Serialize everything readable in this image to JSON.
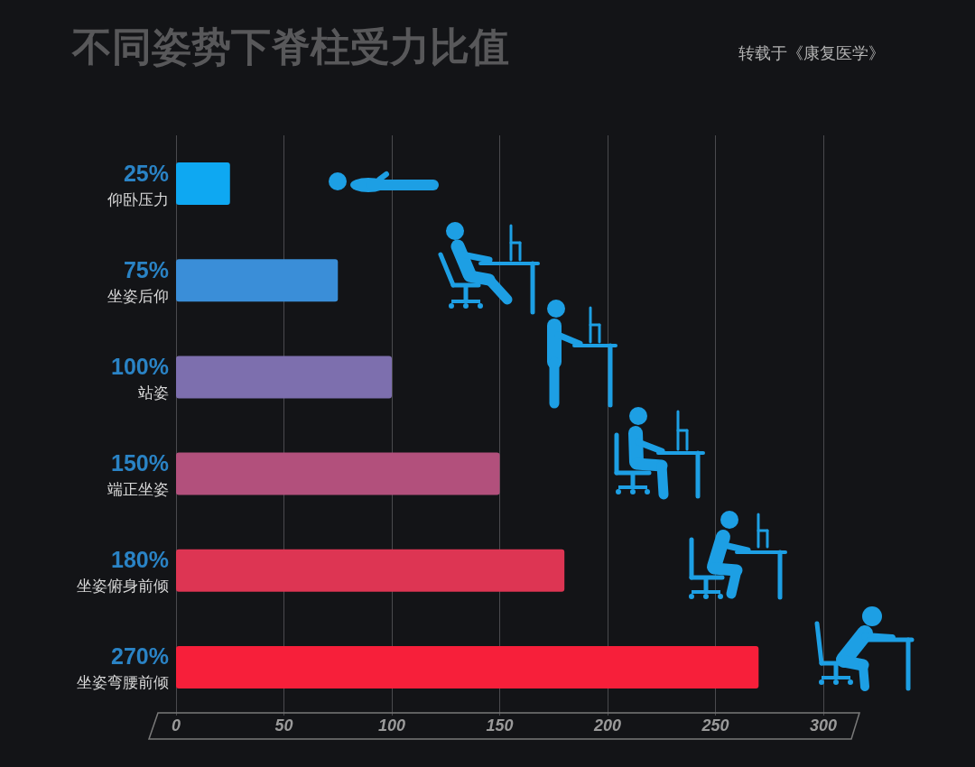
{
  "chart_data": {
    "type": "bar",
    "orientation": "horizontal",
    "title": "不同姿势下脊柱受力比值",
    "annotations": [
      "转载于《康复医学》"
    ],
    "categories": [
      "仰卧压力",
      "坐姿后仰",
      "站姿",
      "端正坐姿",
      "坐姿俯身前倾",
      "坐姿弯腰前倾"
    ],
    "values": [
      25,
      75,
      100,
      150,
      180,
      270
    ],
    "value_labels": [
      "25%",
      "75%",
      "100%",
      "150%",
      "180%",
      "270%"
    ],
    "colors": [
      "#0ea8f2",
      "#3a8ed8",
      "#7d6fae",
      "#b2507c",
      "#dd3553",
      "#f71f3a"
    ],
    "xlim": [
      0,
      300
    ],
    "xticks": [
      0,
      50,
      100,
      150,
      200,
      250,
      300
    ],
    "grid": "x"
  }
}
